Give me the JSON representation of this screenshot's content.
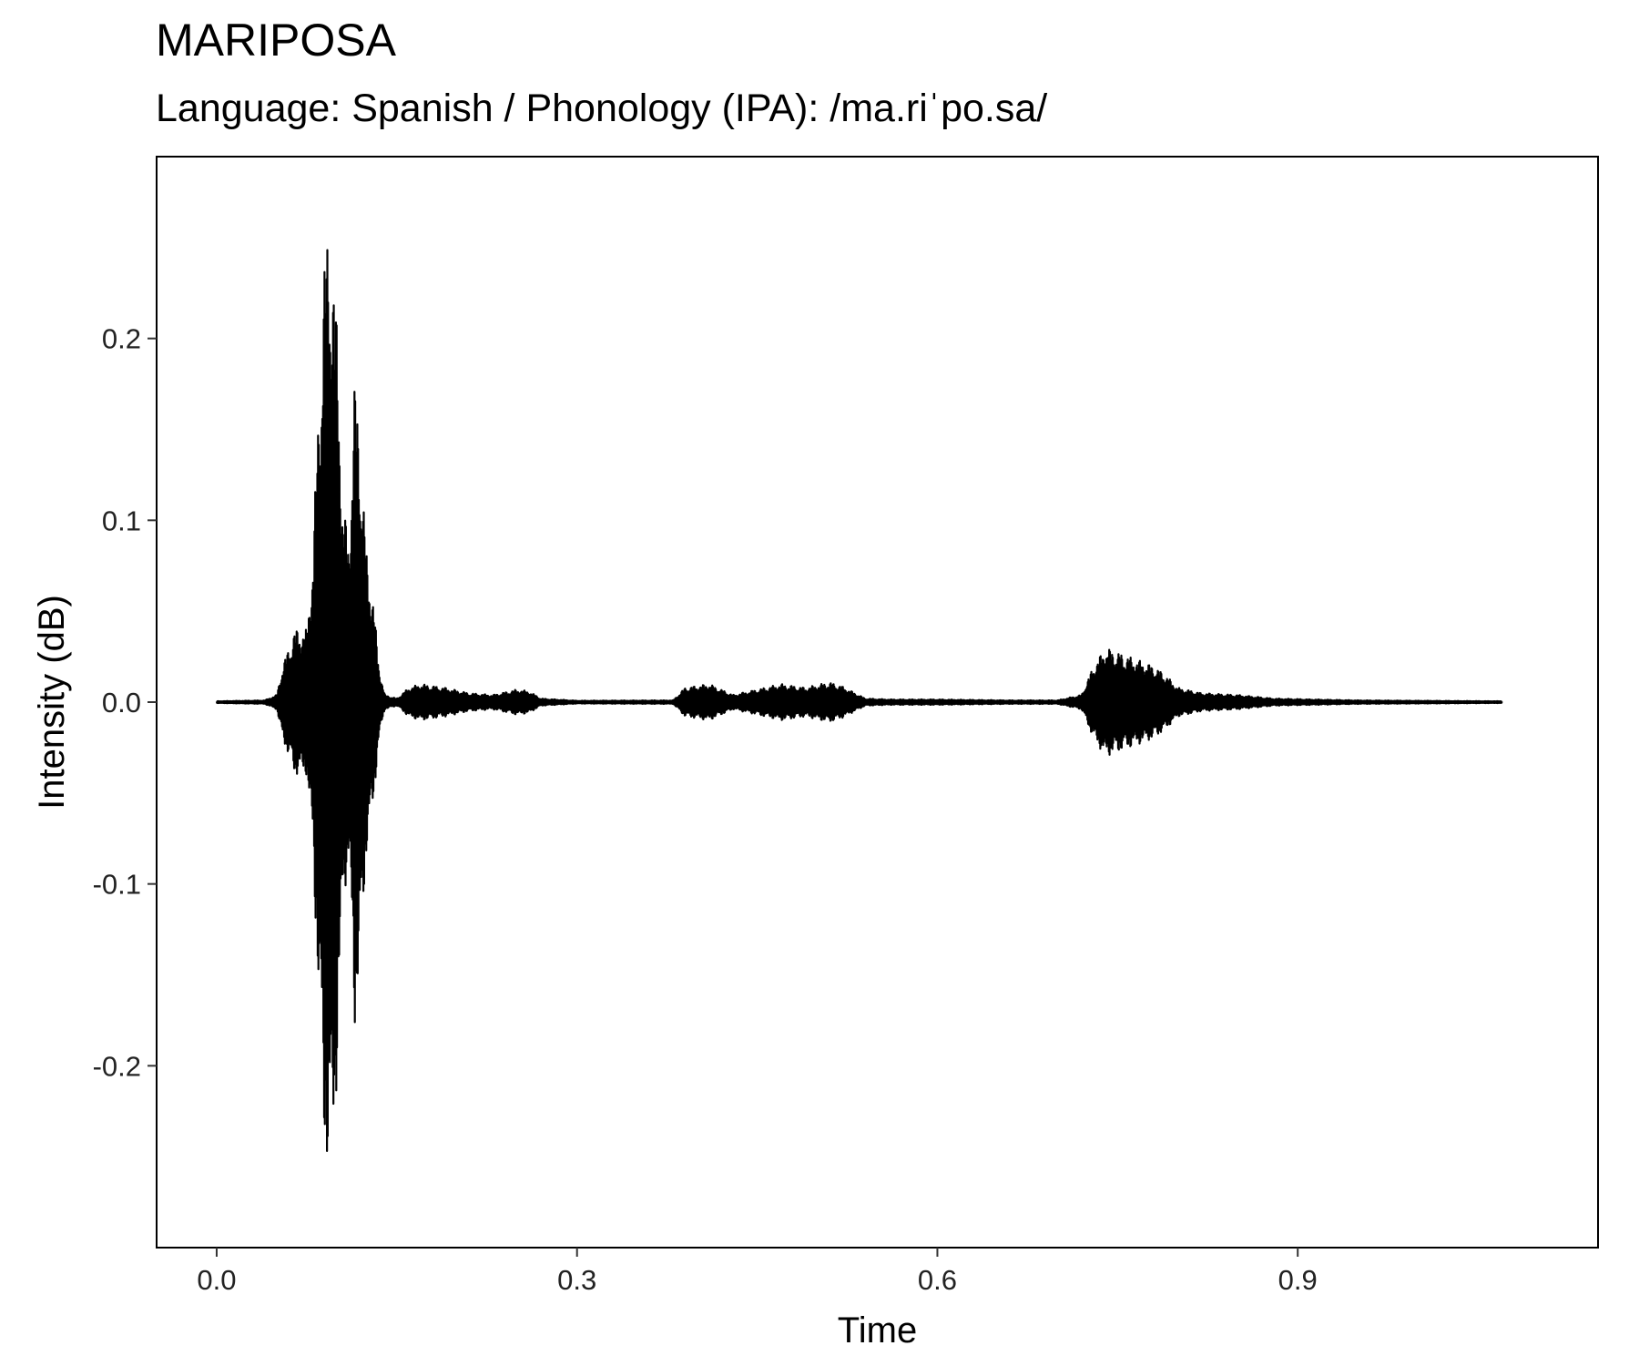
{
  "chart_data": {
    "type": "line",
    "title": "MARIPOSA",
    "subtitle": "Language: Spanish / Phonology (IPA): /ma.riˈpo.sa/",
    "xlabel": "Time",
    "ylabel": "Intensity (dB)",
    "xlim": [
      -0.05,
      1.15
    ],
    "ylim": [
      -0.3,
      0.3
    ],
    "x_ticks": [
      0.0,
      0.3,
      0.6,
      0.9
    ],
    "x_tick_labels": [
      "0.0",
      "0.3",
      "0.6",
      "0.9"
    ],
    "y_ticks": [
      -0.2,
      -0.1,
      0.0,
      0.1,
      0.2
    ],
    "y_tick_labels": [
      "-0.2",
      "-0.1",
      "0.0",
      "0.1",
      "0.2"
    ],
    "grid": false,
    "legend": "none",
    "line_color": "#000000",
    "duration": 1.07,
    "envelope": [
      [
        0.0,
        0.0005
      ],
      [
        0.04,
        0.001
      ],
      [
        0.05,
        0.004
      ],
      [
        0.055,
        0.02
      ],
      [
        0.06,
        0.03
      ],
      [
        0.065,
        0.04
      ],
      [
        0.075,
        0.04
      ],
      [
        0.08,
        0.08
      ],
      [
        0.085,
        0.17
      ],
      [
        0.09,
        0.25
      ],
      [
        0.095,
        0.27
      ],
      [
        0.1,
        0.21
      ],
      [
        0.105,
        0.11
      ],
      [
        0.11,
        0.09
      ],
      [
        0.115,
        0.18
      ],
      [
        0.12,
        0.14
      ],
      [
        0.125,
        0.08
      ],
      [
        0.13,
        0.06
      ],
      [
        0.135,
        0.02
      ],
      [
        0.14,
        0.004
      ],
      [
        0.15,
        0.002
      ],
      [
        0.16,
        0.008
      ],
      [
        0.17,
        0.01
      ],
      [
        0.19,
        0.008
      ],
      [
        0.21,
        0.005
      ],
      [
        0.23,
        0.004
      ],
      [
        0.25,
        0.007
      ],
      [
        0.26,
        0.006
      ],
      [
        0.27,
        0.002
      ],
      [
        0.3,
        0.0008
      ],
      [
        0.38,
        0.001
      ],
      [
        0.39,
        0.008
      ],
      [
        0.41,
        0.01
      ],
      [
        0.43,
        0.004
      ],
      [
        0.45,
        0.007
      ],
      [
        0.47,
        0.01
      ],
      [
        0.49,
        0.008
      ],
      [
        0.51,
        0.011
      ],
      [
        0.52,
        0.009
      ],
      [
        0.54,
        0.002
      ],
      [
        0.56,
        0.0015
      ],
      [
        0.6,
        0.0015
      ],
      [
        0.66,
        0.001
      ],
      [
        0.7,
        0.001
      ],
      [
        0.72,
        0.004
      ],
      [
        0.73,
        0.02
      ],
      [
        0.74,
        0.03
      ],
      [
        0.76,
        0.025
      ],
      [
        0.78,
        0.02
      ],
      [
        0.79,
        0.015
      ],
      [
        0.8,
        0.008
      ],
      [
        0.82,
        0.005
      ],
      [
        0.85,
        0.004
      ],
      [
        0.88,
        0.002
      ],
      [
        0.95,
        0.001
      ],
      [
        1.07,
        0.0005
      ]
    ]
  }
}
